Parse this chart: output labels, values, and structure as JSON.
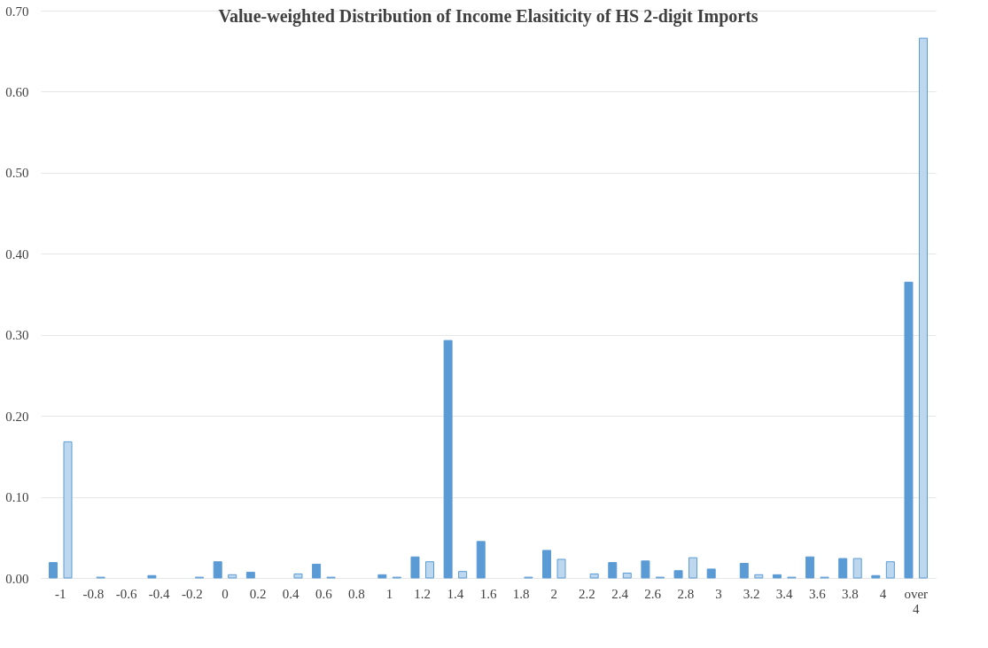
{
  "chart_data": {
    "type": "bar",
    "title": "Value-weighted Distribution of Income Elasiticity of HS 2-digit Imports",
    "categories": [
      "-1",
      "-0.8",
      "-0.6",
      "-0.4",
      "-0.2",
      "0",
      "0.2",
      "0.4",
      "0.6",
      "0.8",
      "1",
      "1.2",
      "1.4",
      "1.6",
      "1.8",
      "2",
      "2.2",
      "2.4",
      "2.6",
      "2.8",
      "3",
      "3.2",
      "3.4",
      "3.6",
      "3.8",
      "4",
      "over 4"
    ],
    "series": [
      {
        "color": "#5b9bd5",
        "values": [
          0.019,
          null,
          null,
          0.003,
          null,
          0.02,
          0.007,
          null,
          0.017,
          null,
          0.004,
          0.026,
          0.293,
          0.045,
          null,
          0.034,
          null,
          0.019,
          0.021,
          0.009,
          0.011,
          0.018,
          0.004,
          0.026,
          0.024,
          0.003,
          0.365
        ]
      },
      {
        "color": "#bdd7ee",
        "values": [
          0.168,
          0.001,
          null,
          null,
          0.001,
          0.004,
          null,
          0.005,
          0.001,
          null,
          0.001,
          0.02,
          0.008,
          null,
          0.001,
          0.023,
          0.005,
          0.006,
          0.001,
          0.025,
          null,
          0.004,
          0.001,
          0.001,
          0.024,
          0.02,
          0.666
        ]
      }
    ],
    "ylim": [
      0,
      0.7
    ],
    "yticks": [
      {
        "value": 0,
        "label": "0.00"
      },
      {
        "value": 0.1,
        "label": "0.10"
      },
      {
        "value": 0.2,
        "label": "0.20"
      },
      {
        "value": 0.3,
        "label": "0.30"
      },
      {
        "value": 0.4,
        "label": "0.40"
      },
      {
        "value": 0.5,
        "label": "0.50"
      },
      {
        "value": 0.6,
        "label": "0.60"
      },
      {
        "value": 0.7,
        "label": "0.70"
      }
    ],
    "grid": "y",
    "legend": false
  }
}
